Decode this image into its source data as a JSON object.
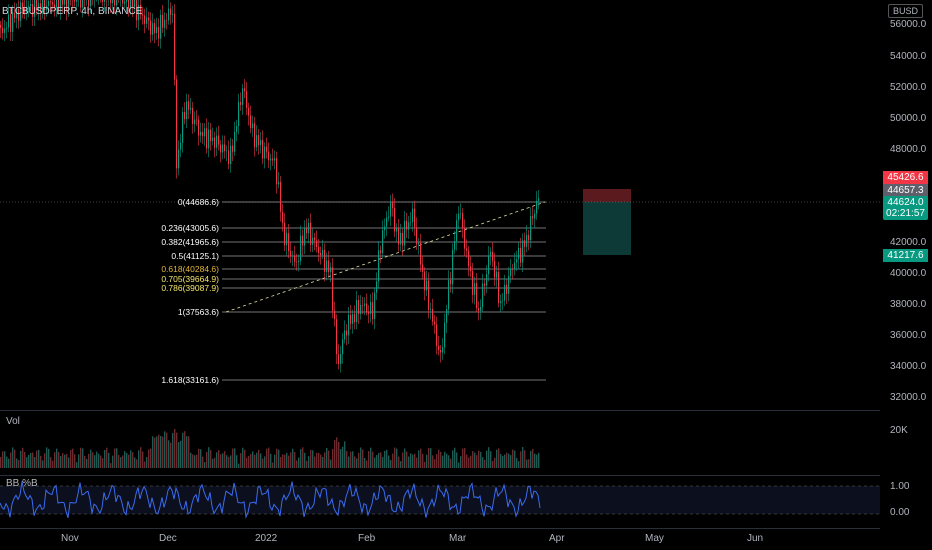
{
  "header": {
    "symbol": "BTCBUSDPERP, 4h, BINANCE",
    "currency_badge": "BUSD"
  },
  "price_axis": {
    "ticks": [
      "56000.0",
      "54000.0",
      "52000.0",
      "50000.0",
      "48000.0",
      "42000.0",
      "40000.0",
      "38000.0",
      "36000.0",
      "34000.0",
      "32000.0"
    ]
  },
  "price_badges": {
    "stop": "45426.6",
    "last": "44657.3",
    "current": "44624.0",
    "countdown": "02:21:57",
    "target": "41217.6",
    "colors": {
      "stop": "#f23645",
      "last": "#5d606b",
      "current": "#089981",
      "target": "#089981"
    }
  },
  "fib_levels": [
    {
      "label": "0(44686.6)",
      "color": "#ffffff"
    },
    {
      "label": "0.236(43005.6)",
      "color": "#ffffff"
    },
    {
      "label": "0.382(41965.6)",
      "color": "#ffffff"
    },
    {
      "label": "0.5(41125.1)",
      "color": "#ffffff"
    },
    {
      "label": "0.618(40284.6)",
      "color": "#e0b53a"
    },
    {
      "label": "0.705(39664.9)",
      "color": "#f5e66a"
    },
    {
      "label": "0.786(39087.9)",
      "color": "#f5e66a"
    },
    {
      "label": "1(37563.6)",
      "color": "#ffffff"
    },
    {
      "label": "1.618(33161.6)",
      "color": "#ffffff"
    }
  ],
  "volume_pane": {
    "label": "Vol",
    "axis_tick": "20K"
  },
  "indicator_pane": {
    "label": "BB %B",
    "ticks": [
      "1.00",
      "0.00"
    ]
  },
  "time_axis": {
    "labels": [
      "Nov",
      "Dec",
      "2022",
      "Feb",
      "Mar",
      "Apr",
      "May",
      "Jun"
    ]
  }
}
